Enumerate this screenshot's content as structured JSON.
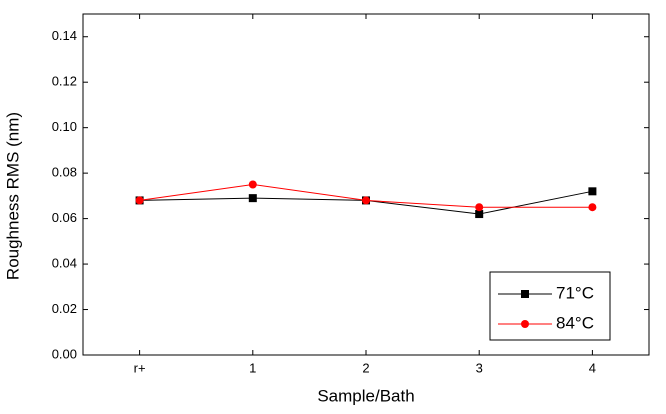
{
  "chart_data": {
    "type": "line",
    "x_label": "Sample/Bath",
    "y_label": "Roughness  RMS (nm)",
    "categories": [
      "r+",
      "1",
      "2",
      "3",
      "4"
    ],
    "series": [
      {
        "name": "71°C",
        "color": "#000000",
        "marker": "square",
        "values": [
          0.068,
          0.069,
          0.068,
          0.062,
          0.072
        ]
      },
      {
        "name": "84°C",
        "color": "#ff0000",
        "marker": "circle",
        "values": [
          0.068,
          0.075,
          0.068,
          0.065,
          0.065
        ]
      }
    ],
    "ylim": [
      0,
      0.15
    ],
    "yticks": [
      {
        "value": 0,
        "label": "0.00"
      },
      {
        "value": 0.02,
        "label": "0.02"
      },
      {
        "value": 0.04,
        "label": "0.04"
      },
      {
        "value": 0.06,
        "label": "0.06"
      },
      {
        "value": 0.08,
        "label": "0.08"
      },
      {
        "value": 0.1,
        "label": "0.10"
      },
      {
        "value": 0.12,
        "label": "0.12"
      },
      {
        "value": 0.14,
        "label": "0.14"
      }
    ],
    "legend": "lower right"
  }
}
